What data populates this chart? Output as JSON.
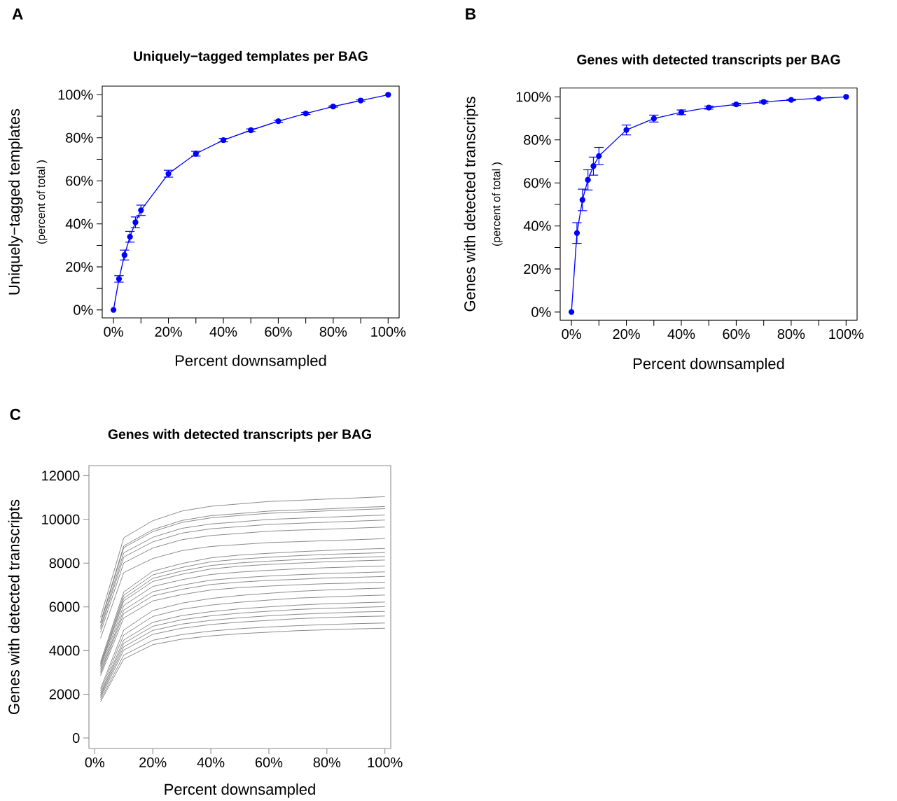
{
  "chart_data": [
    {
      "type": "line",
      "title": "Uniquely−tagged templates per BAG",
      "xlabel": "Percent downsampled",
      "ylabel": "Uniquely−tagged templates",
      "annotations": [
        "A",
        "(percent of total )"
      ],
      "color": "#0000ff",
      "marker": "circle",
      "line_style": "solid",
      "x": [
        0,
        2,
        4,
        6,
        8,
        10,
        20,
        30,
        40,
        50,
        60,
        70,
        80,
        90,
        100
      ],
      "values": [
        0,
        14.4,
        25.5,
        34,
        40.7,
        46.3,
        63.3,
        72.6,
        78.9,
        83.5,
        87.7,
        91.3,
        94.5,
        97.3,
        100
      ],
      "errors": [
        null,
        1.5,
        2.3,
        2.5,
        2.5,
        2.4,
        1.6,
        1.1,
        0.8,
        0.6,
        0.5,
        0.5,
        0.3,
        0.3,
        null
      ],
      "xlim": [
        -4.1,
        104
      ],
      "ylim": [
        -3.7,
        104
      ],
      "xticks": [
        {
          "value": 0,
          "label": "0%"
        },
        {
          "value": 10,
          "label": null
        },
        {
          "value": 20,
          "label": "20%"
        },
        {
          "value": 30,
          "label": null
        },
        {
          "value": 40,
          "label": "40%"
        },
        {
          "value": 50,
          "label": null
        },
        {
          "value": 60,
          "label": "60%"
        },
        {
          "value": 70,
          "label": null
        },
        {
          "value": 80,
          "label": "80%"
        },
        {
          "value": 90,
          "label": null
        },
        {
          "value": 100,
          "label": "100%"
        }
      ],
      "yticks": [
        {
          "value": 0,
          "label": "0%"
        },
        {
          "value": 10,
          "label": null
        },
        {
          "value": 20,
          "label": "20%"
        },
        {
          "value": 30,
          "label": null
        },
        {
          "value": 40,
          "label": "40%"
        },
        {
          "value": 50,
          "label": null
        },
        {
          "value": 60,
          "label": "60%"
        },
        {
          "value": 70,
          "label": null
        },
        {
          "value": 80,
          "label": "80%"
        },
        {
          "value": 90,
          "label": null
        },
        {
          "value": 100,
          "label": "100%"
        }
      ]
    },
    {
      "type": "line",
      "title": "Genes with detected transcripts per BAG",
      "xlabel": "Percent downsampled",
      "ylabel": "Genes with detected transcripts",
      "annotations": [
        "B",
        "(percent of total )"
      ],
      "color": "#0000ff",
      "marker": "circle",
      "line_style": "solid",
      "x": [
        0,
        2,
        4,
        6,
        8,
        10,
        20,
        30,
        40,
        50,
        60,
        70,
        80,
        90,
        100
      ],
      "values": [
        0,
        36.7,
        52.1,
        61.4,
        67.8,
        72.5,
        84.6,
        89.9,
        92.8,
        95.0,
        96.5,
        97.6,
        98.6,
        99.3,
        100
      ],
      "errors": [
        null,
        4.8,
        5.0,
        4.7,
        4.2,
        4.0,
        2.3,
        1.6,
        1.1,
        0.7,
        0.5,
        0.5,
        0.3,
        0.2,
        null
      ],
      "xlim": [
        -4.1,
        104
      ],
      "ylim": [
        -3.8,
        104.1
      ],
      "xticks": [
        {
          "value": 0,
          "label": "0%"
        },
        {
          "value": 10,
          "label": null
        },
        {
          "value": 20,
          "label": "20%"
        },
        {
          "value": 30,
          "label": null
        },
        {
          "value": 40,
          "label": "40%"
        },
        {
          "value": 50,
          "label": null
        },
        {
          "value": 60,
          "label": "60%"
        },
        {
          "value": 70,
          "label": null
        },
        {
          "value": 80,
          "label": "80%"
        },
        {
          "value": 90,
          "label": null
        },
        {
          "value": 100,
          "label": "100%"
        }
      ],
      "yticks": [
        {
          "value": 0,
          "label": "0%"
        },
        {
          "value": 10,
          "label": null
        },
        {
          "value": 20,
          "label": "20%"
        },
        {
          "value": 30,
          "label": null
        },
        {
          "value": 40,
          "label": "40%"
        },
        {
          "value": 50,
          "label": null
        },
        {
          "value": 60,
          "label": "60%"
        },
        {
          "value": 70,
          "label": null
        },
        {
          "value": 80,
          "label": "80%"
        },
        {
          "value": 90,
          "label": null
        },
        {
          "value": 100,
          "label": "100%"
        }
      ]
    },
    {
      "type": "line",
      "title": "Genes with detected transcripts per BAG",
      "xlabel": "Percent downsampled",
      "ylabel": "Genes with detected transcripts",
      "annotations": [
        "C"
      ],
      "marker": "none",
      "line_style": "solid",
      "x": [
        2,
        10,
        20,
        30,
        40,
        50,
        60,
        70,
        80,
        90,
        100
      ],
      "xlim": [
        -2,
        102
      ],
      "ylim": [
        -480,
        12460
      ],
      "xticks": [
        {
          "value": 0,
          "label": "0%"
        },
        {
          "value": 20,
          "label": "20%"
        },
        {
          "value": 40,
          "label": "40%"
        },
        {
          "value": 60,
          "label": "60%"
        },
        {
          "value": 80,
          "label": "80%"
        },
        {
          "value": 100,
          "label": "100%"
        }
      ],
      "yticks": [
        0,
        2000,
        4000,
        6000,
        8000,
        10000,
        12000
      ],
      "series": [
        {
          "color": "#6e6e6e",
          "values": [
            5520,
            9160,
            9940,
            10380,
            10600,
            10710,
            10820,
            10870,
            10930,
            10980,
            11040
          ]
        },
        {
          "color": "#6e6e6e",
          "values": [
            5300,
            8790,
            9530,
            9950,
            10170,
            10270,
            10380,
            10430,
            10480,
            10540,
            10590
          ]
        },
        {
          "color": "#6e6e6e",
          "values": [
            5250,
            8710,
            9440,
            9860,
            10070,
            10180,
            10280,
            10330,
            10390,
            10440,
            10490
          ]
        },
        {
          "color": "#6e6e6e",
          "values": [
            5100,
            8470,
            9180,
            9590,
            9790,
            9890,
            10000,
            10050,
            10100,
            10150,
            10200
          ]
        },
        {
          "color": "#6e6e6e",
          "values": [
            4990,
            8280,
            8970,
            9370,
            9570,
            9670,
            9770,
            9820,
            9870,
            9920,
            9970
          ]
        },
        {
          "color": "#6e6e6e",
          "values": [
            4830,
            8010,
            8690,
            9070,
            9260,
            9360,
            9460,
            9510,
            9550,
            9600,
            9650
          ]
        },
        {
          "color": "#6e6e6e",
          "values": [
            4560,
            7570,
            8210,
            8570,
            8760,
            8850,
            8940,
            8980,
            9030,
            9070,
            9120
          ]
        },
        {
          "color": "#6e6e6e",
          "values": [
            3470,
            6680,
            7630,
            7980,
            8240,
            8370,
            8450,
            8520,
            8580,
            8630,
            8670
          ]
        },
        {
          "color": "#6e6e6e",
          "values": [
            3390,
            6530,
            7460,
            7800,
            8060,
            8180,
            8270,
            8340,
            8400,
            8440,
            8480
          ]
        },
        {
          "color": "#6e6e6e",
          "values": [
            3320,
            6390,
            7300,
            7640,
            7890,
            8010,
            8090,
            8160,
            8220,
            8260,
            8300
          ]
        },
        {
          "color": "#6e6e6e",
          "values": [
            3260,
            6270,
            7160,
            7490,
            7730,
            7860,
            7940,
            8000,
            8060,
            8100,
            8140
          ]
        },
        {
          "color": "#6e6e6e",
          "values": [
            3150,
            6060,
            6930,
            7240,
            7480,
            7590,
            7670,
            7740,
            7790,
            7830,
            7870
          ]
        },
        {
          "color": "#6e6e6e",
          "values": [
            3040,
            5850,
            6690,
            6990,
            7220,
            7330,
            7410,
            7470,
            7520,
            7560,
            7600
          ]
        },
        {
          "color": "#6e6e6e",
          "values": [
            2960,
            5690,
            6500,
            6800,
            7020,
            7130,
            7210,
            7260,
            7320,
            7350,
            7390
          ]
        },
        {
          "color": "#6e6e6e",
          "values": [
            2850,
            5490,
            6270,
            6560,
            6770,
            6880,
            6950,
            7010,
            7060,
            7090,
            7130
          ]
        },
        {
          "color": "#6e6e6e",
          "values": [
            2260,
            4940,
            5830,
            6170,
            6380,
            6520,
            6620,
            6710,
            6770,
            6820,
            6860
          ]
        },
        {
          "color": "#6e6e6e",
          "values": [
            2160,
            4710,
            5560,
            5890,
            6080,
            6210,
            6310,
            6400,
            6450,
            6500,
            6540
          ]
        },
        {
          "color": "#6e6e6e",
          "values": [
            2050,
            4480,
            5290,
            5600,
            5780,
            5910,
            6000,
            6080,
            6140,
            6180,
            6220
          ]
        },
        {
          "color": "#6e6e6e",
          "values": [
            1980,
            4330,
            5110,
            5410,
            5590,
            5710,
            5800,
            5880,
            5930,
            5970,
            6010
          ]
        },
        {
          "color": "#6e6e6e",
          "values": [
            1910,
            4170,
            4920,
            5210,
            5380,
            5500,
            5590,
            5660,
            5710,
            5760,
            5790
          ]
        },
        {
          "color": "#6e6e6e",
          "values": [
            1840,
            4020,
            4740,
            5020,
            5190,
            5300,
            5380,
            5460,
            5510,
            5550,
            5580
          ]
        },
        {
          "color": "#6e6e6e",
          "values": [
            1740,
            3790,
            4470,
            4730,
            4890,
            5000,
            5080,
            5140,
            5190,
            5230,
            5260
          ]
        },
        {
          "color": "#6e6e6e",
          "values": [
            1660,
            3610,
            4270,
            4520,
            4670,
            4770,
            4840,
            4910,
            4950,
            4990,
            5020
          ]
        }
      ]
    }
  ]
}
